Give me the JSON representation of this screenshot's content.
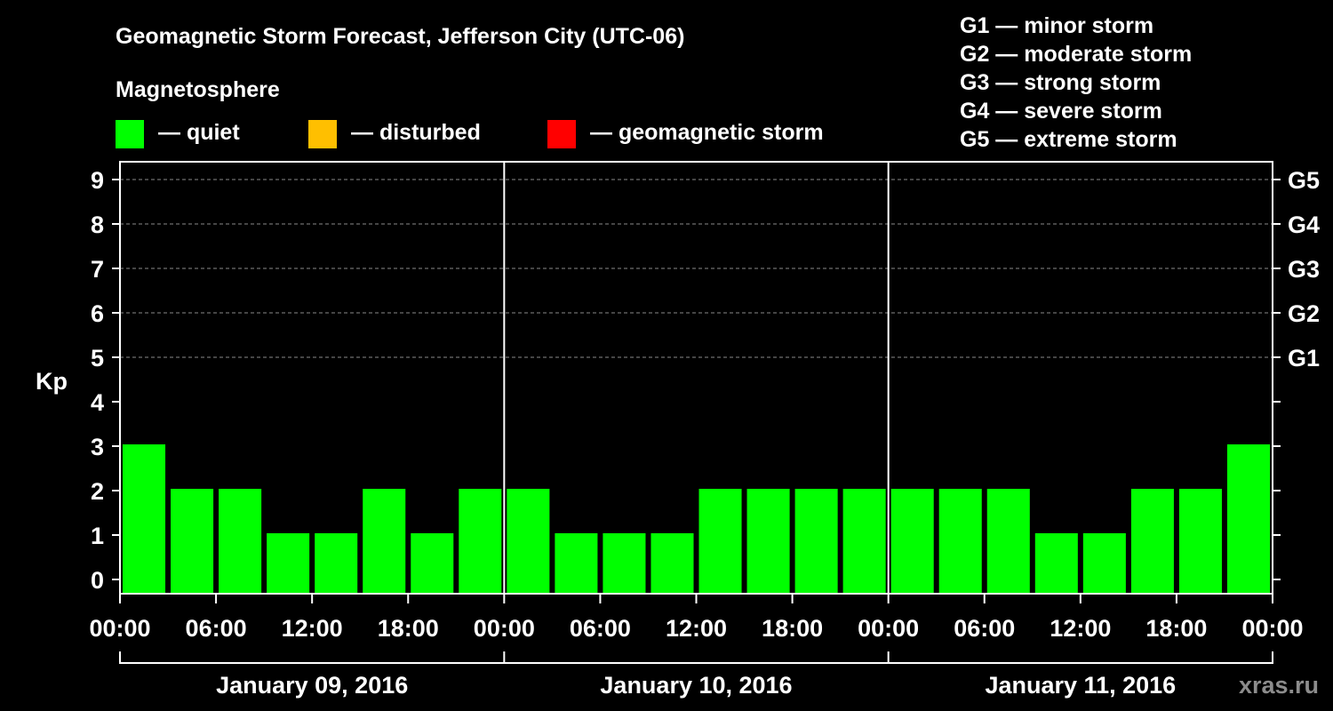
{
  "chart_data": {
    "type": "bar",
    "title": "Geomagnetic Storm Forecast, Jefferson City (UTC-06)",
    "legend_title": "Magnetosphere",
    "legend": [
      {
        "label": "— quiet",
        "color": "#00ff00"
      },
      {
        "label": "— disturbed",
        "color": "#ffbf00"
      },
      {
        "label": "— geomagnetic storm",
        "color": "#ff0000"
      }
    ],
    "storm_scale": [
      "G1 — minor storm",
      "G2 — moderate storm",
      "G3 — strong storm",
      "G4 — severe storm",
      "G5 — extreme storm"
    ],
    "ylabel": "Kp",
    "ylim": [
      0,
      9
    ],
    "yticks": [
      0,
      1,
      2,
      3,
      4,
      5,
      6,
      7,
      8,
      9
    ],
    "right_ticks": [
      {
        "kp": 5,
        "label": "G1"
      },
      {
        "kp": 6,
        "label": "G2"
      },
      {
        "kp": 7,
        "label": "G3"
      },
      {
        "kp": 8,
        "label": "G4"
      },
      {
        "kp": 9,
        "label": "G5"
      }
    ],
    "xtick_labels": [
      "00:00",
      "06:00",
      "12:00",
      "18:00",
      "00:00",
      "06:00",
      "12:00",
      "18:00",
      "00:00",
      "06:00",
      "12:00",
      "18:00",
      "00:00"
    ],
    "days": [
      "January 09, 2016",
      "January 10, 2016",
      "January 11, 2016"
    ],
    "interval_hours": 3,
    "series": [
      {
        "name": "Kp",
        "values": [
          3,
          2,
          2,
          1,
          1,
          2,
          1,
          2,
          2,
          1,
          1,
          1,
          2,
          2,
          2,
          2,
          2,
          2,
          2,
          1,
          1,
          2,
          2,
          3
        ]
      }
    ],
    "bar_color": "#00ff00",
    "grid_color": "#8a8a8a",
    "watermark": "xras.ru"
  }
}
